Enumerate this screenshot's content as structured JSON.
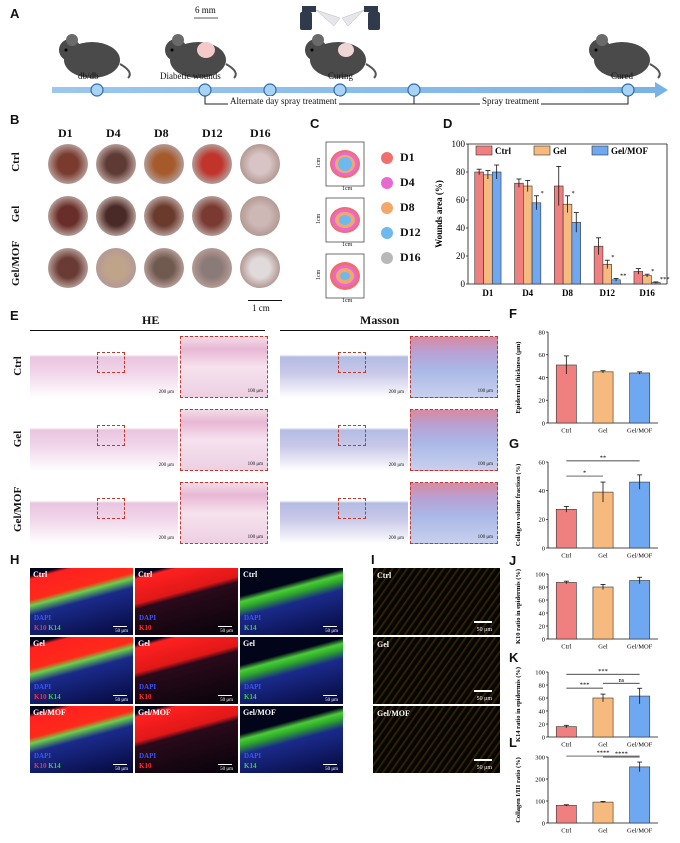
{
  "panels": {
    "A": "A",
    "B": "B",
    "C": "C",
    "D": "D",
    "E": "E",
    "F": "F",
    "G": "G",
    "H": "H",
    "I": "I",
    "J": "J",
    "K": "K",
    "L": "L"
  },
  "timeline": {
    "size_label": "6 mm",
    "stages": [
      "db/db",
      "Diabetic wounds",
      "Curing",
      "Cured"
    ],
    "phases": [
      "Alternate day spray treatment",
      "Spray treatment"
    ]
  },
  "photos": {
    "days": [
      "D1",
      "D4",
      "D8",
      "D12",
      "D16"
    ],
    "groups": [
      "Ctrl",
      "Gel",
      "Gel/MOF"
    ],
    "scale": "1 cm"
  },
  "traces": {
    "axis_label_x": "1cm",
    "axis_label_y": "1cm",
    "legend": [
      {
        "label": "D1",
        "color": "#ef6f6c"
      },
      {
        "label": "D4",
        "color": "#e86ad0"
      },
      {
        "label": "D8",
        "color": "#f3a86b"
      },
      {
        "label": "D12",
        "color": "#6db9ee"
      },
      {
        "label": "D16",
        "color": "#b8b8b8"
      }
    ]
  },
  "histology": {
    "he_title": "HE",
    "masson_title": "Masson",
    "groups": [
      "Ctrl",
      "Gel",
      "Gel/MOF"
    ],
    "scale_low": "200 μm",
    "scale_high": "100 μm"
  },
  "fluorescence": {
    "groups": [
      "Ctrl",
      "Gel",
      "Gel/MOF"
    ],
    "dapi": "DAPI",
    "k10": "K10",
    "k14": "K14",
    "scale": "50 μm"
  },
  "polarized": {
    "groups": [
      "Ctrl",
      "Gel",
      "Gel/MOF"
    ],
    "scale": "50 μm"
  },
  "colors": {
    "ctrl": "#f08080",
    "gel": "#f6b97e",
    "gelmof": "#6fa8f0"
  },
  "chart_data": [
    {
      "id": "D",
      "type": "bar",
      "ylabel": "Wounds area (%)",
      "categories": [
        "D1",
        "D4",
        "D8",
        "D12",
        "D16"
      ],
      "legend": [
        "Ctrl",
        "Gel",
        "Gel/MOF"
      ],
      "ylim": [
        0,
        100
      ],
      "yticks": [
        0,
        20,
        40,
        60,
        80,
        100
      ],
      "series": [
        {
          "name": "Ctrl",
          "values": [
            80,
            72,
            70,
            27,
            9
          ],
          "err": [
            2,
            3,
            14,
            6,
            2
          ]
        },
        {
          "name": "Gel",
          "values": [
            78,
            70,
            57,
            14,
            6
          ],
          "err": [
            3,
            4,
            6,
            3,
            1
          ]
        },
        {
          "name": "Gel/MOF",
          "values": [
            80,
            58,
            44,
            3,
            1
          ],
          "err": [
            5,
            5,
            7,
            1,
            0.5
          ]
        }
      ],
      "annotations": [
        "*",
        "*",
        "*",
        "**",
        "*",
        "***"
      ]
    },
    {
      "id": "F",
      "type": "bar",
      "ylabel": "Epidermal thickness (μm)",
      "categories": [
        "Ctrl",
        "Gel",
        "Gel/MOF"
      ],
      "ylim": [
        0,
        80
      ],
      "yticks": [
        0,
        20,
        40,
        60,
        80
      ],
      "values": [
        51,
        45,
        44
      ],
      "err": [
        8,
        1,
        1
      ]
    },
    {
      "id": "G",
      "type": "bar",
      "ylabel": "Collagen volume fraction (%)",
      "categories": [
        "Ctrl",
        "Gel",
        "Gel/MOF"
      ],
      "ylim": [
        0,
        60
      ],
      "yticks": [
        0,
        20,
        40,
        60
      ],
      "values": [
        27,
        39,
        46
      ],
      "err": [
        2,
        7,
        5
      ],
      "sig": [
        {
          "from": 0,
          "to": 1,
          "label": "*"
        },
        {
          "from": 0,
          "to": 2,
          "label": "**"
        }
      ]
    },
    {
      "id": "J",
      "type": "bar",
      "ylabel": "K10 ratio in epidermis (%)",
      "categories": [
        "Ctrl",
        "Gel",
        "Gel/MOF"
      ],
      "ylim": [
        0,
        100
      ],
      "yticks": [
        0,
        20,
        40,
        60,
        80,
        100
      ],
      "values": [
        87,
        80,
        90
      ],
      "err": [
        2,
        4,
        5
      ]
    },
    {
      "id": "K",
      "type": "bar",
      "ylabel": "K14 ratio in epidermis (%)",
      "categories": [
        "Ctrl",
        "Gel",
        "Gel/MOF"
      ],
      "ylim": [
        0,
        100
      ],
      "yticks": [
        0,
        20,
        40,
        60,
        80,
        100
      ],
      "values": [
        16,
        60,
        63
      ],
      "err": [
        2,
        6,
        12
      ],
      "sig": [
        {
          "from": 0,
          "to": 1,
          "label": "***"
        },
        {
          "from": 0,
          "to": 2,
          "label": "***"
        },
        {
          "from": 1,
          "to": 2,
          "label": "ns"
        }
      ]
    },
    {
      "id": "L",
      "type": "bar",
      "ylabel": "Collagen I/III ratio (%)",
      "categories": [
        "Ctrl",
        "Gel",
        "Gel/MOF"
      ],
      "ylim": [
        0,
        300
      ],
      "yticks": [
        0,
        100,
        200,
        300
      ],
      "values": [
        80,
        95,
        255
      ],
      "err": [
        3,
        3,
        22
      ],
      "sig": [
        {
          "from": 0,
          "to": 2,
          "label": "****"
        },
        {
          "from": 1,
          "to": 2,
          "label": "****"
        }
      ]
    }
  ]
}
